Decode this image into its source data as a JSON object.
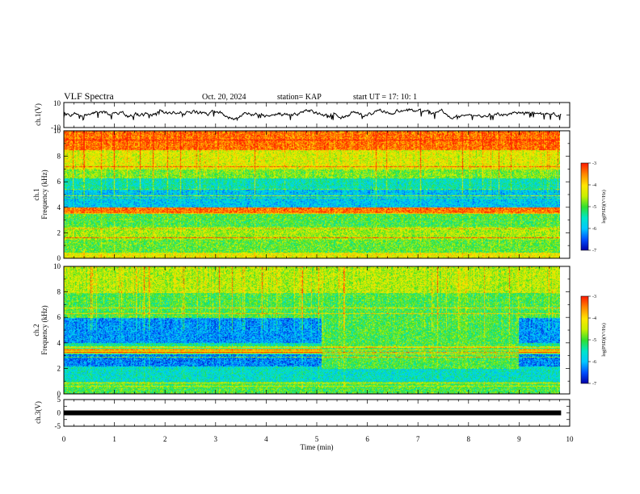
{
  "header": {
    "title": "VLF Spectra",
    "date": "Oct. 20, 2024",
    "station": "station= KAP",
    "start": "start  UT  =   17: 10: 1"
  },
  "colorbar_label": "log(PSD)(V²/Hz)",
  "colors": {
    "colormap": [
      "#0000a8",
      "#0050ff",
      "#00c8ff",
      "#00e6c8",
      "#30e030",
      "#c8f000",
      "#ffe600",
      "#ff8c00",
      "#ff2000",
      "#ffffff"
    ]
  },
  "chart_data": [
    {
      "type": "line",
      "name": "ch1-waveform",
      "ylabel": "ch.1(V)",
      "ylim": [
        -10,
        10
      ],
      "yticks": [
        "10",
        "-10"
      ],
      "xlim": [
        0,
        10
      ],
      "x_extent": 9.83,
      "trace_range": [
        -4,
        5
      ]
    },
    {
      "type": "heatmap",
      "name": "ch1-spectrogram",
      "ylabel": "ch.1\nFrequency (kHz)",
      "ylim": [
        0,
        10
      ],
      "yticks": [
        "0",
        "2",
        "4",
        "6",
        "8",
        "10"
      ],
      "xlim": [
        0,
        10
      ],
      "x_extent": 9.83,
      "colorbar": {
        "range": [
          -7,
          -3
        ],
        "ticks": [
          "-3",
          "-4",
          "-5",
          "-6",
          "-7"
        ]
      },
      "bands": [
        {
          "f": [
            0.0,
            0.5
          ],
          "level": -4.2
        },
        {
          "f": [
            0.5,
            1.5
          ],
          "level": -4.9
        },
        {
          "f": [
            1.5,
            2.5
          ],
          "level": -4.6
        },
        {
          "f": [
            2.5,
            3.6
          ],
          "level": -5.0
        },
        {
          "f": [
            3.6,
            4.0
          ],
          "level": -3.4
        },
        {
          "f": [
            4.0,
            5.5
          ],
          "level": -5.9
        },
        {
          "f": [
            5.5,
            6.3
          ],
          "level": -5.5
        },
        {
          "f": [
            6.3,
            7.0
          ],
          "level": -4.8
        },
        {
          "f": [
            7.0,
            8.5
          ],
          "level": -4.3
        },
        {
          "f": [
            8.5,
            10.0
          ],
          "level": -3.4
        }
      ]
    },
    {
      "type": "heatmap",
      "name": "ch2-spectrogram",
      "ylabel": "ch.2\nFrequency (kHz)",
      "ylim": [
        0,
        10
      ],
      "yticks": [
        "0",
        "2",
        "4",
        "6",
        "8",
        "10"
      ],
      "xlim": [
        0,
        10
      ],
      "x_extent": 9.83,
      "colorbar": {
        "range": [
          -7,
          -3
        ],
        "ticks": [
          "-3",
          "-4",
          "-5",
          "-6",
          "-7"
        ]
      },
      "bands": [
        {
          "f": [
            0.0,
            1.0
          ],
          "level": -5.0
        },
        {
          "f": [
            1.0,
            2.2
          ],
          "level": -5.6
        },
        {
          "f": [
            2.2,
            3.2
          ],
          "level": -6.3
        },
        {
          "f": [
            3.2,
            3.6
          ],
          "level": -4.2
        },
        {
          "f": [
            3.6,
            4.0
          ],
          "level": -5.4
        },
        {
          "f": [
            4.0,
            6.0
          ],
          "level": -6.2
        },
        {
          "f": [
            6.0,
            8.0
          ],
          "level": -5.0
        },
        {
          "f": [
            8.0,
            10.0
          ],
          "level": -4.5
        }
      ],
      "quiet_interval": {
        "x": [
          5.1,
          9.0
        ],
        "f": [
          2.0,
          6.3
        ],
        "level": -5.0
      }
    },
    {
      "type": "line",
      "name": "ch3-waveform",
      "ylabel": "ch.3(V)",
      "ylim": [
        -5,
        5
      ],
      "yticks": [
        "5",
        "0",
        "-5"
      ],
      "xlim": [
        0,
        10
      ],
      "x_extent": 9.83,
      "level": 0,
      "xlabel": "Time (min)",
      "xticks": [
        "0",
        "1",
        "2",
        "3",
        "4",
        "5",
        "6",
        "7",
        "8",
        "9",
        "10"
      ]
    }
  ]
}
